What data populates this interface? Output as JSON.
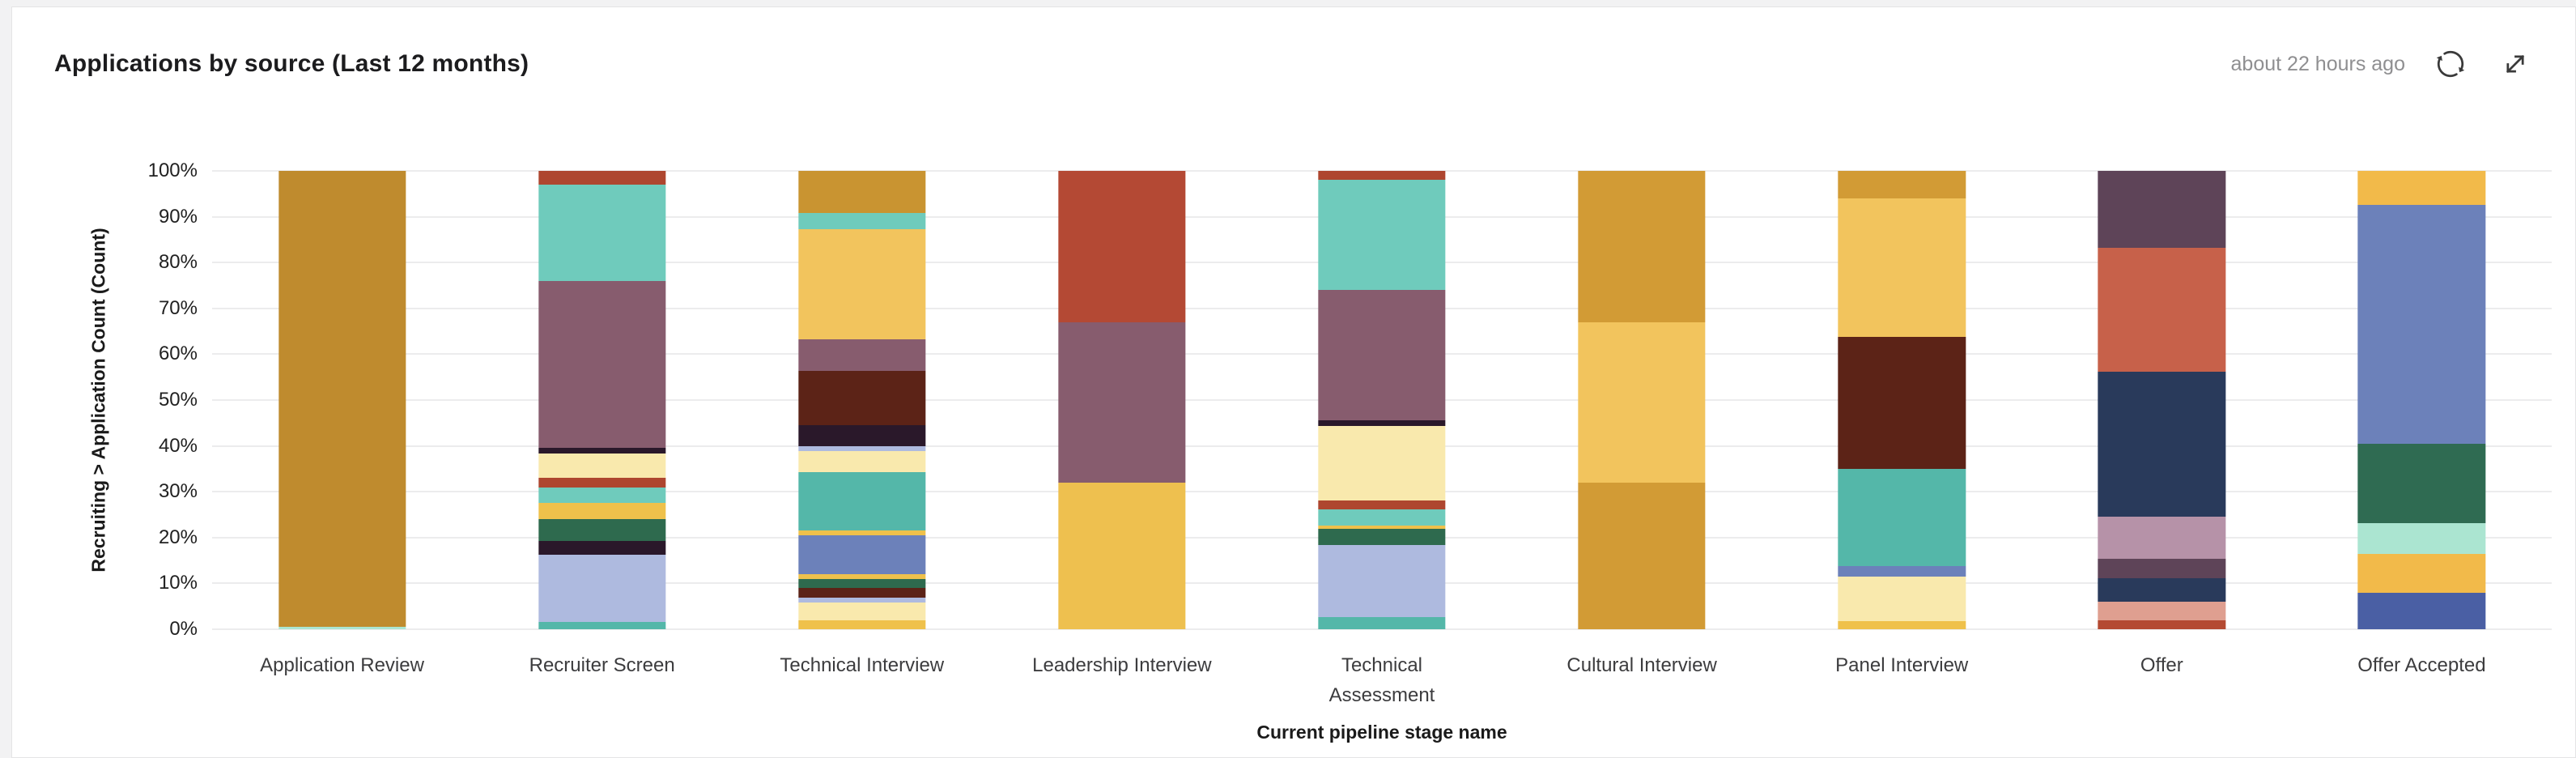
{
  "page": {
    "background": "#f2f2f3",
    "card_background": "#ffffff",
    "card_border": "#e4e4e5"
  },
  "header": {
    "title": "Applications by source (Last 12 months)",
    "updated": "about 22 hours ago",
    "refresh_icon": "circular-arrows",
    "expand_icon": "diagonal-expand-arrows"
  },
  "chart_data": {
    "type": "bar",
    "variant": "stacked-100-percent",
    "title": "Applications by source (Last 12 months)",
    "xlabel": "Current pipeline stage name",
    "ylabel": "Recruiting > Application Count (Count)",
    "ylim": [
      0,
      100
    ],
    "y_ticks": [
      "0%",
      "10%",
      "20%",
      "30%",
      "40%",
      "50%",
      "60%",
      "70%",
      "80%",
      "90%",
      "100%"
    ],
    "grid": true,
    "legend": "none",
    "categories": [
      "Application Review",
      "Recruiter Screen",
      "Technical Interview",
      "Leadership Interview",
      "Technical Assessment",
      "Cultural Interview",
      "Panel Interview",
      "Offer",
      "Offer Accepted"
    ],
    "bars": [
      {
        "category": "Application Review",
        "segments": [
          {
            "color": "#bf8b2e",
            "pct": 99.5
          },
          {
            "color": "#abe5d1",
            "pct": 0.5
          }
        ]
      },
      {
        "category": "Recruiter Screen",
        "segments": [
          {
            "color": "#ae462f",
            "pct": 3.0
          },
          {
            "color": "#6fcbbc",
            "pct": 21.0
          },
          {
            "color": "#875c6e",
            "pct": 36.5
          },
          {
            "color": "#2a182a",
            "pct": 1.2
          },
          {
            "color": "#f9e9ad",
            "pct": 5.2
          },
          {
            "color": "#ae462f",
            "pct": 2.2
          },
          {
            "color": "#6fcbbc",
            "pct": 3.4
          },
          {
            "color": "#efc14b",
            "pct": 3.4
          },
          {
            "color": "#2e6a4e",
            "pct": 4.8
          },
          {
            "color": "#2a182a",
            "pct": 3.1
          },
          {
            "color": "#aebadf",
            "pct": 14.7
          },
          {
            "color": "#54b7a9",
            "pct": 1.5
          }
        ]
      },
      {
        "category": "Technical Interview",
        "segments": [
          {
            "color": "#c99431",
            "pct": 9.2
          },
          {
            "color": "#6fcbbc",
            "pct": 3.5
          },
          {
            "color": "#f2c45d",
            "pct": 24.0
          },
          {
            "color": "#875c6e",
            "pct": 7.0
          },
          {
            "color": "#5c2317",
            "pct": 11.8
          },
          {
            "color": "#2a182a",
            "pct": 4.6
          },
          {
            "color": "#aebadf",
            "pct": 1.0
          },
          {
            "color": "#f9e9ad",
            "pct": 4.6
          },
          {
            "color": "#54b7a9",
            "pct": 12.8
          },
          {
            "color": "#efc14b",
            "pct": 1.0
          },
          {
            "color": "#6c81ba",
            "pct": 8.5
          },
          {
            "color": "#efc14b",
            "pct": 1.0
          },
          {
            "color": "#2e6a4e",
            "pct": 2.0
          },
          {
            "color": "#5c2317",
            "pct": 2.1
          },
          {
            "color": "#aebadf",
            "pct": 1.0
          },
          {
            "color": "#f9e9ad",
            "pct": 3.9
          },
          {
            "color": "#efc14b",
            "pct": 2.0
          }
        ]
      },
      {
        "category": "Leadership Interview",
        "segments": [
          {
            "color": "#b44934",
            "pct": 33.0
          },
          {
            "color": "#875c6e",
            "pct": 35.0
          },
          {
            "color": "#eec04f",
            "pct": 32.0
          }
        ]
      },
      {
        "category": "Technical Assessment",
        "segments": [
          {
            "color": "#ae462f",
            "pct": 2.0
          },
          {
            "color": "#6fcbbc",
            "pct": 24.0
          },
          {
            "color": "#875c6e",
            "pct": 28.4
          },
          {
            "color": "#2a182a",
            "pct": 1.2
          },
          {
            "color": "#f9e9ad",
            "pct": 16.4
          },
          {
            "color": "#ae462f",
            "pct": 1.8
          },
          {
            "color": "#6fcbbc",
            "pct": 3.6
          },
          {
            "color": "#efc14b",
            "pct": 0.7
          },
          {
            "color": "#2e6a4e",
            "pct": 3.5
          },
          {
            "color": "#aebadf",
            "pct": 15.8
          },
          {
            "color": "#54b7a9",
            "pct": 2.6
          }
        ]
      },
      {
        "category": "Cultural Interview",
        "segments": [
          {
            "color": "#d29b35",
            "pct": 33.0
          },
          {
            "color": "#f2c45d",
            "pct": 35.0
          },
          {
            "color": "#d29b35",
            "pct": 32.0
          }
        ]
      },
      {
        "category": "Panel Interview",
        "segments": [
          {
            "color": "#d29b35",
            "pct": 6.0
          },
          {
            "color": "#f2c45d",
            "pct": 30.3
          },
          {
            "color": "#5c2317",
            "pct": 28.8
          },
          {
            "color": "#54b7a9",
            "pct": 21.2
          },
          {
            "color": "#6c81ba",
            "pct": 2.3
          },
          {
            "color": "#f9e9ad",
            "pct": 9.6
          },
          {
            "color": "#efc14b",
            "pct": 1.8
          }
        ]
      },
      {
        "category": "Offer",
        "segments": [
          {
            "color": "#5e4458",
            "pct": 16.8
          },
          {
            "color": "#c7614a",
            "pct": 27.0
          },
          {
            "color": "#293a5b",
            "pct": 31.7
          },
          {
            "color": "#b692a8",
            "pct": 9.1
          },
          {
            "color": "#5e4458",
            "pct": 4.3
          },
          {
            "color": "#293a5b",
            "pct": 5.1
          },
          {
            "color": "#df9f90",
            "pct": 4.1
          },
          {
            "color": "#b44a32",
            "pct": 1.9
          }
        ]
      },
      {
        "category": "Offer Accepted",
        "segments": [
          {
            "color": "#f2ba4a",
            "pct": 7.4
          },
          {
            "color": "#6c81ba",
            "pct": 52.2
          },
          {
            "color": "#2f6b52",
            "pct": 17.2
          },
          {
            "color": "#abe5d1",
            "pct": 6.8
          },
          {
            "color": "#f2ba4a",
            "pct": 8.4
          },
          {
            "color": "#4a5fa4",
            "pct": 8.0
          }
        ]
      }
    ]
  }
}
